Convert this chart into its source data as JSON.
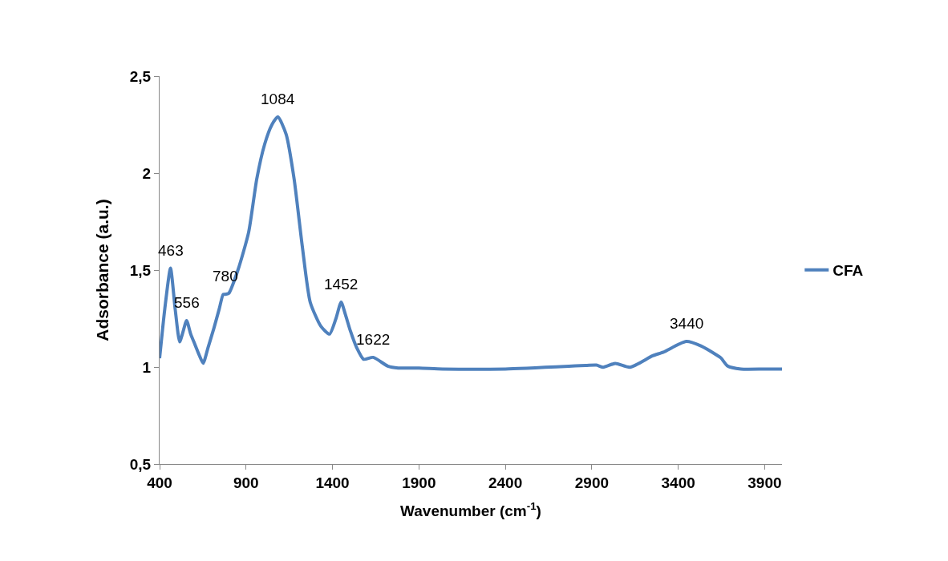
{
  "chart_data": {
    "type": "line",
    "xlabel": "Wavenumber (cm$^{-1}$)",
    "ylabel": "Adsorbance (a.u.)",
    "xlim": [
      400,
      4000
    ],
    "xticks": [
      400,
      900,
      1400,
      1900,
      2400,
      2900,
      3400,
      3900
    ],
    "ylim": [
      0.5,
      2.5
    ],
    "yticks": [
      {
        "value": 0.5,
        "label": "0,5"
      },
      1,
      {
        "value": 1.5,
        "label": "1,5"
      },
      2,
      {
        "value": 2.5,
        "label": "2,5"
      }
    ],
    "grid": false,
    "legend": "right",
    "marker": "none",
    "line_style": "solid",
    "series": [
      {
        "name": "CFA",
        "color": "#4f81bd",
        "x": [
          400,
          430,
          463,
          490,
          516,
          535,
          556,
          580,
          605,
          630,
          652,
          680,
          714,
          745,
          768,
          780,
          800,
          853,
          915,
          962,
          1008,
          1050,
          1084,
          1132,
          1178,
          1225,
          1271,
          1333,
          1383,
          1420,
          1450,
          1475,
          1504,
          1540,
          1580,
          1635,
          1720,
          1780,
          1900,
          2037,
          2400,
          2865,
          2927,
          2966,
          3036,
          3121,
          3252,
          3314,
          3446,
          3531,
          3624,
          3647,
          3686,
          3763,
          3900,
          4000
        ],
        "values": [
          1.045,
          1.3,
          1.51,
          1.3,
          1.13,
          1.18,
          1.24,
          1.17,
          1.115,
          1.06,
          1.02,
          1.1,
          1.2,
          1.3,
          1.375,
          1.375,
          1.38,
          1.5,
          1.695,
          1.97,
          2.15,
          2.25,
          2.29,
          2.2,
          1.97,
          1.625,
          1.335,
          1.21,
          1.17,
          1.25,
          1.335,
          1.27,
          1.185,
          1.1,
          1.04,
          1.05,
          1.005,
          0.995,
          0.995,
          0.99,
          0.99,
          1.008,
          1.01,
          0.999,
          1.019,
          0.999,
          1.058,
          1.077,
          1.132,
          1.109,
          1.061,
          1.047,
          1.005,
          0.99,
          0.99,
          0.99
        ]
      }
    ],
    "annotations": [
      {
        "text": "463",
        "x": 463,
        "y": 1.51
      },
      {
        "text": "556",
        "x": 556,
        "y": 1.24
      },
      {
        "text": "780",
        "x": 780,
        "y": 1.375
      },
      {
        "text": "1084",
        "x": 1084,
        "y": 2.29
      },
      {
        "text": "1452",
        "x": 1450,
        "y": 1.335
      },
      {
        "text": "1622",
        "x": 1635,
        "y": 1.05
      },
      {
        "text": "3440",
        "x": 3446,
        "y": 1.132
      }
    ]
  }
}
